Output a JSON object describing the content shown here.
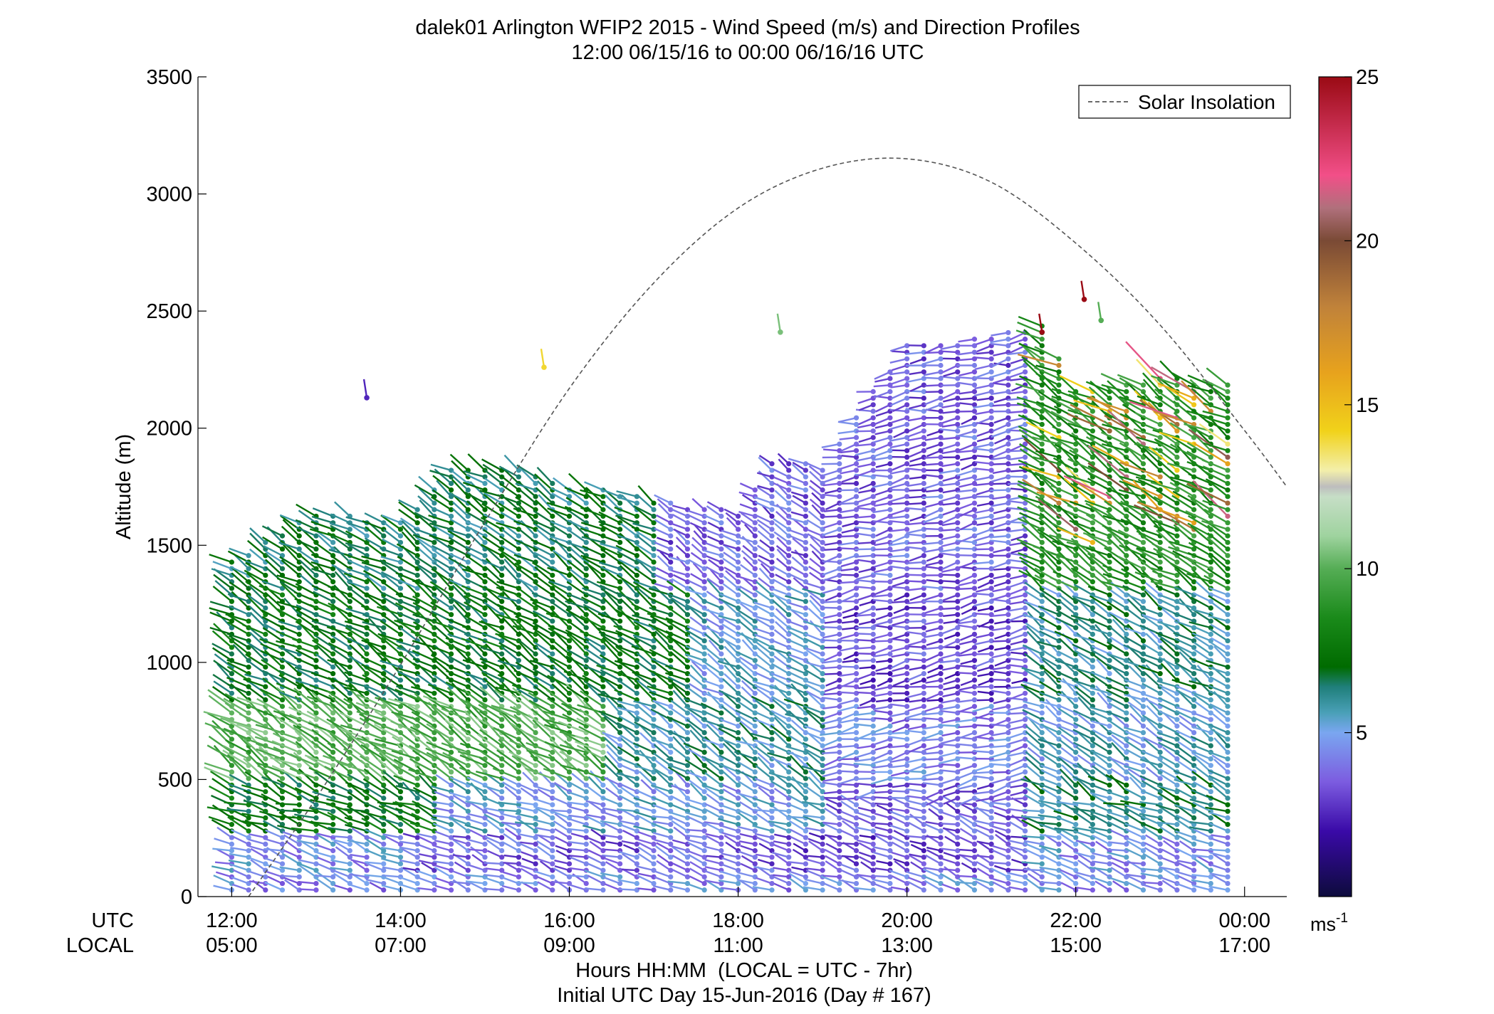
{
  "chart_data": {
    "type": "scatter",
    "subtype": "wind-barb-profile",
    "title": "dalek01 Arlington WFIP2 2015 - Wind Speed (m/s) and Direction Profiles",
    "subtitle": "12:00 06/15/16 to 00:00 06/16/16  UTC",
    "ylabel": "Altitude (m)",
    "xlabel": "Hours HH:MM  (LOCAL = UTC - 7hr)",
    "xlabel2": "Initial UTC Day 15-Jun-2016 (Day # 167)",
    "x_row_labels": [
      "UTC",
      "LOCAL"
    ],
    "x_range_utc_hours": [
      11.6,
      24.5
    ],
    "ylim": [
      0,
      3500
    ],
    "y_ticks": [
      "0",
      "500",
      "1000",
      "1500",
      "2000",
      "2500",
      "3000",
      "3500"
    ],
    "x_ticks_utc": [
      "12:00",
      "14:00",
      "16:00",
      "18:00",
      "20:00",
      "22:00",
      "00:00"
    ],
    "x_ticks_local": [
      "05:00",
      "07:00",
      "09:00",
      "11:00",
      "13:00",
      "15:00",
      "17:00"
    ],
    "x_tick_hours": [
      12,
      14,
      16,
      18,
      20,
      22,
      24
    ],
    "legend": {
      "entries": [
        "Solar Insolation"
      ],
      "location": "top-right",
      "line_style": "dashed",
      "color": "#555555"
    },
    "colorbar": {
      "range": [
        0,
        25
      ],
      "ticks": [
        "5",
        "10",
        "15",
        "20",
        "25"
      ],
      "unit_base": "ms",
      "unit_exp": "-1",
      "stops": [
        {
          "v": 0,
          "c": "#0d0b3c"
        },
        {
          "v": 2,
          "c": "#3a0aa8"
        },
        {
          "v": 3.5,
          "c": "#7c5ce0"
        },
        {
          "v": 5,
          "c": "#7aa6f0"
        },
        {
          "v": 5.6,
          "c": "#4aa0b8"
        },
        {
          "v": 6.4,
          "c": "#1f7f7a"
        },
        {
          "v": 7,
          "c": "#006b00"
        },
        {
          "v": 8.5,
          "c": "#1a8a1a"
        },
        {
          "v": 10,
          "c": "#55ad55"
        },
        {
          "v": 11,
          "c": "#9fd39f"
        },
        {
          "v": 12.2,
          "c": "#c6dec6"
        },
        {
          "v": 12.5,
          "c": "#bdbdbd"
        },
        {
          "v": 13,
          "c": "#f3efaa"
        },
        {
          "v": 14.2,
          "c": "#f1d21a"
        },
        {
          "v": 16,
          "c": "#e7a21d"
        },
        {
          "v": 18,
          "c": "#c0823a"
        },
        {
          "v": 20,
          "c": "#7a4a35"
        },
        {
          "v": 21,
          "c": "#b0707c"
        },
        {
          "v": 22,
          "c": "#f24f88"
        },
        {
          "v": 25,
          "c": "#9a0a14"
        }
      ]
    },
    "solar_insolation": {
      "x_hours": [
        12.2,
        13.0,
        14.0,
        15.0,
        16.0,
        17.0,
        18.0,
        19.0,
        20.0,
        21.0,
        22.0,
        23.0,
        24.0,
        24.5
      ],
      "y_m": [
        0,
        420,
        990,
        1600,
        2170,
        2620,
        2940,
        3110,
        3150,
        3050,
        2790,
        2440,
        1990,
        1750
      ]
    },
    "profile_summary": {
      "time_step_hours": 0.2,
      "start_hour": 12.0,
      "end_hour": 23.8,
      "gate_spacing_m": 28,
      "lowest_gate_m": 28,
      "top_altitude_m": [
        {
          "h": 12.0,
          "m": 1430
        },
        {
          "h": 13.0,
          "m": 1650
        },
        {
          "h": 14.0,
          "m": 1600
        },
        {
          "h": 14.6,
          "m": 1830
        },
        {
          "h": 15.4,
          "m": 1830
        },
        {
          "h": 16.0,
          "m": 1760
        },
        {
          "h": 17.0,
          "m": 1700
        },
        {
          "h": 18.0,
          "m": 1640
        },
        {
          "h": 18.4,
          "m": 1870
        },
        {
          "h": 19.0,
          "m": 1840
        },
        {
          "h": 19.4,
          "m": 2060
        },
        {
          "h": 20.0,
          "m": 2360
        },
        {
          "h": 21.0,
          "m": 2390
        },
        {
          "h": 21.6,
          "m": 2450
        },
        {
          "h": 22.0,
          "m": 2160
        },
        {
          "h": 23.0,
          "m": 2220
        },
        {
          "h": 23.8,
          "m": 2190
        }
      ],
      "regime_by_time_height": "bands of 5-8 m/s (green) above 500 m early; 2-4 m/s (purple) in the 19:00-21:30 UTC core; 4-6 m/s (light blue) near surface and upper layers; scattered 13-22 m/s barbs above 1500 m after 21:30 UTC",
      "isolated_high_barbs": [
        {
          "h": 13.6,
          "m": 2130,
          "speed": 2.5
        },
        {
          "h": 15.7,
          "m": 2260,
          "speed": 14
        },
        {
          "h": 18.5,
          "m": 2410,
          "speed": 10.5
        },
        {
          "h": 21.6,
          "m": 2410,
          "speed": 25
        },
        {
          "h": 22.1,
          "m": 2550,
          "speed": 25
        },
        {
          "h": 22.3,
          "m": 2460,
          "speed": 10
        }
      ]
    }
  }
}
